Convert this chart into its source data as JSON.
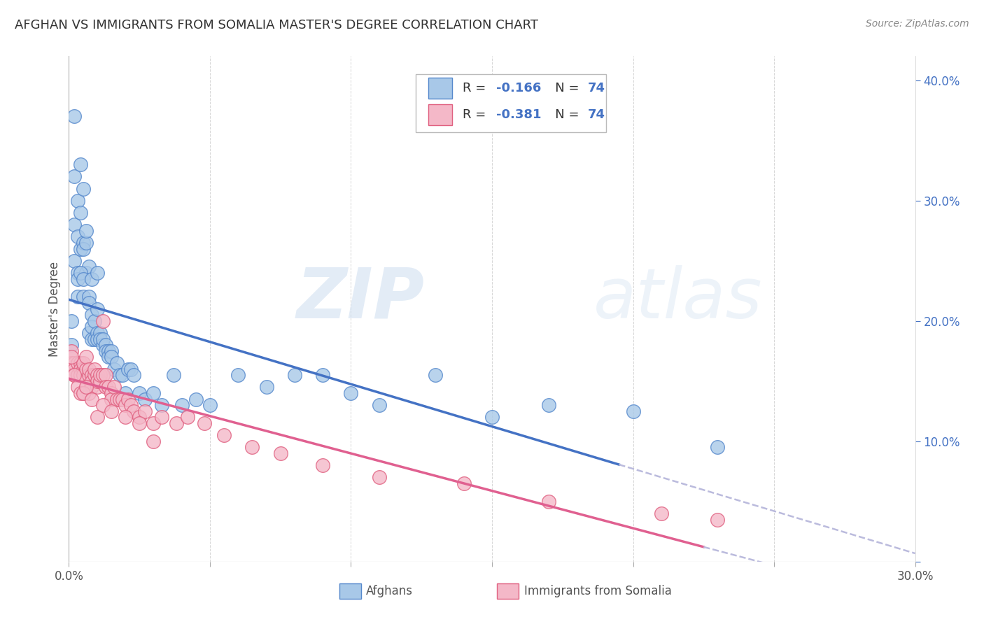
{
  "title": "AFGHAN VS IMMIGRANTS FROM SOMALIA MASTER'S DEGREE CORRELATION CHART",
  "source": "Source: ZipAtlas.com",
  "ylabel": "Master's Degree",
  "xlim": [
    0.0,
    0.3
  ],
  "ylim": [
    0.0,
    0.42
  ],
  "afghan_color": "#a8c8e8",
  "somalia_color": "#f4b8c8",
  "afghan_edge_color": "#5588cc",
  "somalia_edge_color": "#e06080",
  "afghan_line_color": "#4472c4",
  "somalia_line_color": "#e06090",
  "dashed_line_color": "#bbbbdd",
  "legend_afghan_R": "-0.166",
  "legend_afghan_N": "74",
  "legend_somalia_R": "-0.381",
  "legend_somalia_N": "74",
  "legend_label_afghan": "Afghans",
  "legend_label_somalia": "Immigrants from Somalia",
  "watermark_zip": "ZIP",
  "watermark_atlas": "atlas",
  "background_color": "#ffffff",
  "grid_color": "#cccccc",
  "title_color": "#333333",
  "axis_label_color": "#555555",
  "right_tick_color": "#4472c4",
  "afghan_scatter_x": [
    0.001,
    0.001,
    0.002,
    0.002,
    0.002,
    0.003,
    0.003,
    0.003,
    0.003,
    0.004,
    0.004,
    0.004,
    0.005,
    0.005,
    0.005,
    0.005,
    0.006,
    0.006,
    0.006,
    0.007,
    0.007,
    0.007,
    0.007,
    0.008,
    0.008,
    0.008,
    0.009,
    0.009,
    0.01,
    0.01,
    0.01,
    0.011,
    0.011,
    0.012,
    0.012,
    0.013,
    0.013,
    0.014,
    0.014,
    0.015,
    0.015,
    0.016,
    0.017,
    0.018,
    0.019,
    0.02,
    0.021,
    0.022,
    0.023,
    0.025,
    0.027,
    0.03,
    0.033,
    0.037,
    0.04,
    0.045,
    0.05,
    0.06,
    0.07,
    0.08,
    0.09,
    0.1,
    0.11,
    0.13,
    0.15,
    0.17,
    0.2,
    0.23,
    0.002,
    0.003,
    0.004,
    0.005,
    0.008,
    0.01
  ],
  "afghan_scatter_y": [
    0.18,
    0.2,
    0.25,
    0.28,
    0.32,
    0.27,
    0.3,
    0.24,
    0.22,
    0.29,
    0.33,
    0.26,
    0.265,
    0.26,
    0.31,
    0.22,
    0.265,
    0.275,
    0.24,
    0.245,
    0.22,
    0.215,
    0.19,
    0.205,
    0.195,
    0.185,
    0.2,
    0.185,
    0.19,
    0.185,
    0.21,
    0.19,
    0.185,
    0.18,
    0.185,
    0.18,
    0.175,
    0.175,
    0.17,
    0.175,
    0.17,
    0.16,
    0.165,
    0.155,
    0.155,
    0.14,
    0.16,
    0.16,
    0.155,
    0.14,
    0.135,
    0.14,
    0.13,
    0.155,
    0.13,
    0.135,
    0.13,
    0.155,
    0.145,
    0.155,
    0.155,
    0.14,
    0.13,
    0.155,
    0.12,
    0.13,
    0.125,
    0.095,
    0.37,
    0.235,
    0.24,
    0.235,
    0.235,
    0.24
  ],
  "somalia_scatter_x": [
    0.001,
    0.001,
    0.002,
    0.002,
    0.002,
    0.003,
    0.003,
    0.004,
    0.004,
    0.004,
    0.005,
    0.005,
    0.005,
    0.005,
    0.006,
    0.006,
    0.006,
    0.007,
    0.007,
    0.007,
    0.008,
    0.008,
    0.008,
    0.009,
    0.009,
    0.01,
    0.01,
    0.01,
    0.011,
    0.011,
    0.012,
    0.012,
    0.013,
    0.013,
    0.014,
    0.015,
    0.015,
    0.016,
    0.017,
    0.018,
    0.019,
    0.02,
    0.021,
    0.022,
    0.023,
    0.025,
    0.027,
    0.03,
    0.033,
    0.038,
    0.042,
    0.048,
    0.055,
    0.065,
    0.075,
    0.09,
    0.11,
    0.14,
    0.17,
    0.21,
    0.23,
    0.001,
    0.002,
    0.003,
    0.004,
    0.005,
    0.006,
    0.008,
    0.01,
    0.012,
    0.015,
    0.02,
    0.025,
    0.03
  ],
  "somalia_scatter_y": [
    0.175,
    0.165,
    0.165,
    0.16,
    0.155,
    0.165,
    0.155,
    0.165,
    0.16,
    0.155,
    0.16,
    0.155,
    0.165,
    0.14,
    0.16,
    0.17,
    0.145,
    0.155,
    0.16,
    0.14,
    0.155,
    0.15,
    0.145,
    0.155,
    0.16,
    0.145,
    0.155,
    0.15,
    0.15,
    0.155,
    0.2,
    0.155,
    0.155,
    0.145,
    0.145,
    0.14,
    0.135,
    0.145,
    0.135,
    0.135,
    0.135,
    0.13,
    0.135,
    0.13,
    0.125,
    0.12,
    0.125,
    0.115,
    0.12,
    0.115,
    0.12,
    0.115,
    0.105,
    0.095,
    0.09,
    0.08,
    0.07,
    0.065,
    0.05,
    0.04,
    0.035,
    0.17,
    0.155,
    0.145,
    0.14,
    0.14,
    0.145,
    0.135,
    0.12,
    0.13,
    0.125,
    0.12,
    0.115,
    0.1
  ]
}
